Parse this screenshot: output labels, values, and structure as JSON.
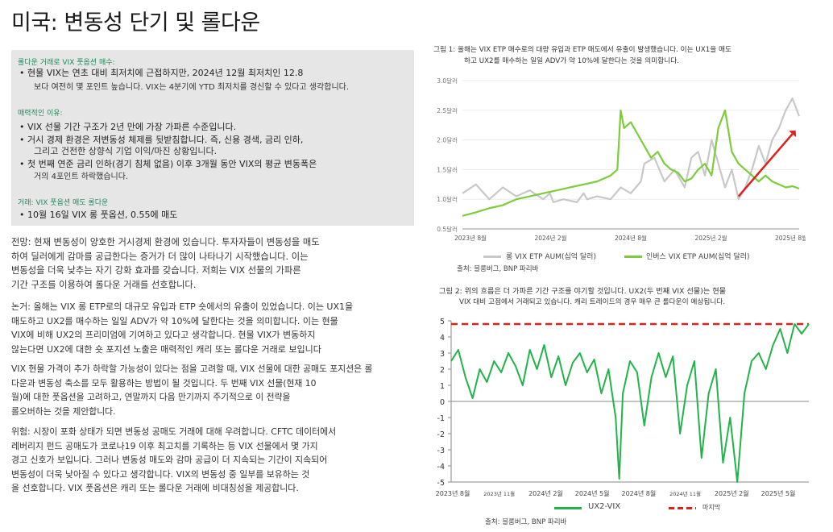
{
  "page": {
    "title": "미국: 변동성 단기 및 롤다운"
  },
  "box": {
    "s1_header": "롤다운 거래로 VIX 풋옵션 매수:",
    "s1_bullet1": "•  현물 VIX는 연초 대비 최저치에 근접하지만, 2024년 12월 최저치인 12.8",
    "s1_bullet1_cont": "보다 여전히 몇 포인트 높습니다. VIX는 4분기에 YTD 최저치를 경신할 수 있다고 생각합니다.",
    "s2_header": "매력적인 이유:",
    "s2_bullet1": "•  VIX 선물 기간 구조가 2년 만에 가장 가파른 수준입니다.",
    "s2_bullet2": "•  거시 경제 환경은 저변동성 체제를 뒷받침합니다. 즉, 신용 경색, 금리 인하,",
    "s2_bullet2_cont": "그리고 건전한 상향식 기업 이익/마진 상황입니다.",
    "s2_bullet3": "•  첫 번째 연준 금리 인하(경기 침체 없음) 이후 3개월 동안 VIX의 평균 변동폭은",
    "s2_bullet3_cont": "거의 4포인트 하락했습니다.",
    "s3_header": "거래: VIX 풋옵션 매도 롤다운",
    "s3_bullet1": "•  10월 16일 VIX 롱 풋옵션, 0.55에 매도"
  },
  "paragraphs": [
    {
      "lines": [
        "전망: 현재 변동성이 양호한 거시경제 환경에 있습니다. 투자자들이 변동성을 매도",
        "하여 딜러에게 감마를 공급한다는 증거가 더 많이 나타나기 시작했습니다. 이는",
        "변동성을 더욱 낮추는 자기 강화 효과를 갖습니다. 저희는 VIX 선물의 가파른",
        "기간 구조를 이용하여 롤다운 거래를 선호합니다."
      ]
    },
    {
      "lines": [
        "논거: 올해는 VIX 롱 ETP로의 대규모 유입과 ETP 숏에서의 유출이 있었습니다. 이는 UX1을",
        "매도하고 UX2를 매수하는 일일 ADV가 약 10%에 달한다는 것을 의미합니다. 이는 현물",
        "VIX에 비해 UX2의 프리미엄에 기여하고 있다고 생각합니다. 현물 VIX가 변동하지",
        "않는다면 UX2에 대한 숏 포지션 노출은 매력적인 캐리 또는 롤다운 거래로 보입니다"
      ]
    },
    {
      "lines": [
        "VIX 현물 가격이 추가 하락할 가능성이 있다는 점을 고려할 때, VIX 선물에 대한 공매도 포지션은 롤",
        "다운과 변동성 축소를 모두 활용하는 방법이 될 것입니다. 두 번째 VIX 선물(현재 10",
        "월)에 대한 풋옵션을 고려하고, 연말까지 다음 만기까지 주기적으로 이 전략을",
        "롤오버하는 것을 제안합니다."
      ]
    },
    {
      "lines": [
        "위험: 시장이 포화 상태가 되면 변동성 공매도 거래에 대해 우려합니다. CFTC 데이터에서",
        "레버리지 펀드 공매도가 코로나19 이후 최고치를 기록하는 등 VIX 선물에서 몇 가지",
        "경고 신호가 보입니다. 그러나 변동성 매도와 감마 공급이 더 지속되는 기간이 지속되어",
        "변동성이 더욱 낮아질 수 있다고 생각합니다. VIX의 변동성 중 일부를 보유하는 것",
        "을 선호합니다. VIX 풋옵션은 캐리 또는 롤다운 거래에 비대칭성을 제공합니다."
      ]
    }
  ],
  "chart1": {
    "caption_line1": "그림 1: 올해는 VIX ETP 매수로의 대량 유입과 ETP 매도에서 유출이 발생했습니다. 이는 UX1을 매도",
    "caption_line2": "하고 UX2를 매수하는 일일 ADV가 약 10%에 달한다는 것을 의미합니다.",
    "legend1": "롱 VIX ETP AUM(십억 달러)",
    "legend2": "인버스 VIX ETP AUM(십억 달러)",
    "source": "출처: 블룸버그, BNP 파리바",
    "colors": {
      "long": "#c8c8c8",
      "inverse": "#7dcc3a",
      "arrow": "#e0201a"
    }
  },
  "chart2": {
    "caption_line1": "그림 2: 위의 흐름은 더 가파른 기간 구조를 야기할 것입니다. UX2(두 번째 VIX 선물)는 현물",
    "caption_line2": "VIX 대비 고점에서 거래되고 있습니다. 캐리 트레이드의 경우 매우 큰 롤다운이 예상됩니다.",
    "legend1": "UX2-VIX",
    "legend2": "마지막",
    "source": "출처: 블룸버그, BNP 파리바",
    "colors": {
      "series": "#22b34a",
      "last": "#e0201a"
    }
  },
  "chart_data": [
    {
      "type": "line",
      "yticks": [
        "3.0달러",
        "2.5달러",
        "2.0달러",
        "1.5달러",
        "1.0달러",
        "0.5달러"
      ],
      "ylim": [
        0.5,
        3.0
      ],
      "xticks": [
        "2023년 8월",
        "2024년 2월",
        "2024년 8월",
        "2025년 2월",
        "2025년 8월"
      ],
      "series": [
        {
          "name": "롱 VIX ETP AUM(십억 달러)",
          "x": [
            0,
            4,
            8,
            12,
            16,
            20,
            24,
            26,
            27,
            30,
            34,
            36,
            37,
            40,
            44,
            47,
            50,
            53,
            54,
            57,
            60,
            63,
            66,
            68,
            70,
            72,
            74,
            76,
            78,
            80,
            82,
            84,
            86,
            88,
            90,
            92,
            94,
            96,
            98,
            100
          ],
          "values": [
            1.1,
            1.25,
            1.0,
            1.2,
            1.05,
            1.15,
            1.0,
            1.1,
            0.95,
            1.0,
            0.95,
            1.1,
            1.0,
            1.05,
            1.0,
            1.2,
            1.1,
            1.3,
            1.6,
            1.7,
            1.3,
            1.5,
            1.2,
            1.7,
            1.8,
            1.4,
            2.0,
            1.6,
            1.2,
            1.5,
            1.0,
            1.2,
            1.5,
            1.9,
            1.6,
            2.0,
            2.2,
            2.5,
            2.7,
            2.4
          ]
        },
        {
          "name": "인버스 VIX ETP AUM(십억 달러)",
          "x": [
            0,
            4,
            8,
            12,
            16,
            20,
            24,
            28,
            32,
            36,
            40,
            44,
            46,
            47,
            48,
            50,
            52,
            54,
            56,
            58,
            60,
            62,
            64,
            66,
            68,
            70,
            72,
            74,
            76,
            78,
            80,
            82,
            84,
            86,
            88,
            90,
            92,
            94,
            96,
            98,
            100
          ],
          "values": [
            0.72,
            0.78,
            0.85,
            0.9,
            1.0,
            1.05,
            1.1,
            1.15,
            1.2,
            1.25,
            1.3,
            1.4,
            1.5,
            2.5,
            2.2,
            2.3,
            2.1,
            1.9,
            1.7,
            1.8,
            1.6,
            1.5,
            1.45,
            1.3,
            1.35,
            1.5,
            1.6,
            1.4,
            2.2,
            2.5,
            1.8,
            1.6,
            1.5,
            1.4,
            1.3,
            1.4,
            1.3,
            1.25,
            1.2,
            1.22,
            1.18
          ]
        }
      ],
      "annotation": "red arrow rising toward top-right"
    },
    {
      "type": "line",
      "yticks": [
        "5",
        "4",
        "3",
        "2",
        "1",
        "0",
        "-1",
        "-2",
        "-3",
        "-4",
        "-5"
      ],
      "ylim": [
        -5,
        5
      ],
      "xticks": [
        "2023년 8월",
        "2023년 11월",
        "2024년 2월",
        "2024년 5월",
        "2024년 8월",
        "2024년 11월",
        "2025년 2월",
        "2025년 5월"
      ],
      "series": [
        {
          "name": "UX2-VIX",
          "x": [
            0,
            2,
            4,
            6,
            8,
            10,
            12,
            14,
            16,
            18,
            20,
            22,
            24,
            26,
            28,
            30,
            32,
            34,
            36,
            38,
            40,
            42,
            44,
            46,
            47,
            48,
            50,
            52,
            54,
            56,
            58,
            60,
            62,
            64,
            66,
            68,
            70,
            72,
            74,
            76,
            78,
            80,
            82,
            84,
            86,
            88,
            90,
            92,
            94,
            96,
            98,
            100
          ],
          "values": [
            2.5,
            3.2,
            1.5,
            0.2,
            2.0,
            1.2,
            2.5,
            1.8,
            3.0,
            2.2,
            1.0,
            3.2,
            2.0,
            3.5,
            1.5,
            2.8,
            1.0,
            2.4,
            3.0,
            1.8,
            2.6,
            0.5,
            2.0,
            -1.0,
            -4.8,
            0.5,
            2.5,
            1.8,
            -1.5,
            1.5,
            3.0,
            1.5,
            2.8,
            -2.0,
            1.0,
            2.5,
            -3.5,
            0.5,
            2.0,
            -3.8,
            -1.0,
            -5.0,
            0.5,
            2.5,
            3.0,
            2.0,
            3.5,
            4.5,
            3.0,
            4.8,
            4.2,
            4.8
          ]
        },
        {
          "name": "마지막",
          "values": [
            4.8
          ]
        }
      ]
    }
  ]
}
